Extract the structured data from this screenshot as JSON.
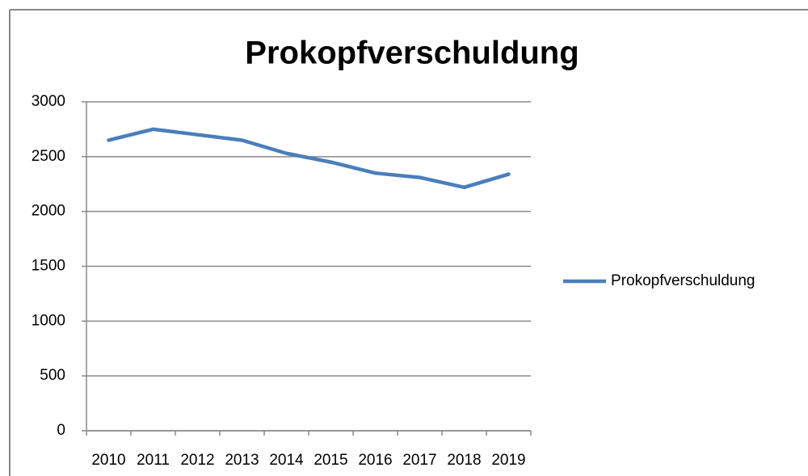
{
  "chart_data": {
    "type": "line",
    "title": "Prokopfverschuldung",
    "categories": [
      "2010",
      "2011",
      "2012",
      "2013",
      "2014",
      "2015",
      "2016",
      "2017",
      "2018",
      "2019"
    ],
    "series": [
      {
        "name": "Prokopfverschuldung",
        "color": "#4a7ebb",
        "values": [
          2650,
          2750,
          2700,
          2650,
          2530,
          2450,
          2350,
          2310,
          2220,
          2340
        ]
      }
    ],
    "ylim": [
      0,
      3000
    ],
    "yticks": [
      0,
      500,
      1000,
      1500,
      2000,
      2500,
      3000
    ],
    "grid": true,
    "legend": "right"
  }
}
